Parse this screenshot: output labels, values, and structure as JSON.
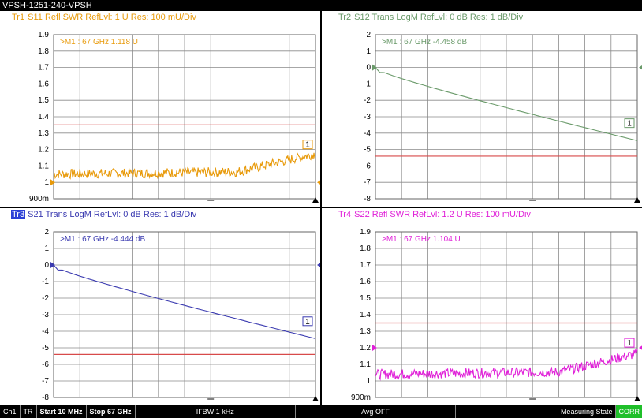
{
  "title": "VPSH-1251-240-VPSH",
  "traces": [
    {
      "id": "tr1",
      "tag": "Tr1",
      "header": "S11 Refl SWR RefLvl: 1  U Res: 100 mU/Div",
      "color": "#e89a0a",
      "marker": ">M1 :  67 GHz  1.118  U",
      "marker_index": "1",
      "yticks": [
        "1.9",
        "1.8",
        "1.7",
        "1.6",
        "1.5",
        "1.4",
        "1.3",
        "1.2",
        "1.1",
        "1",
        "900m"
      ],
      "ymin": 0.9,
      "ymax": 1.9,
      "limit": 1.35,
      "active": false,
      "ref_arrow": true
    },
    {
      "id": "tr2",
      "tag": "Tr2",
      "header": "S12 Trans LogM RefLvl: 0  dB Res: 1  dB/Div",
      "color": "#6a9a6a",
      "marker": ">M1 :  67 GHz  -4.458  dB",
      "marker_index": "1",
      "yticks": [
        "2",
        "1",
        "0",
        "-1",
        "-2",
        "-3",
        "-4",
        "-5",
        "-6",
        "-7",
        "-8"
      ],
      "ymin": -8,
      "ymax": 2,
      "limit": -5.4,
      "active": false,
      "ref_arrow": true
    },
    {
      "id": "tr3",
      "tag": "Tr3",
      "header": "S21 Trans LogM RefLvl: 0  dB Res: 1  dB/Div",
      "color": "#3a3ab0",
      "marker": ">M1 :  67 GHz  -4.444  dB",
      "marker_index": "1",
      "yticks": [
        "2",
        "1",
        "0",
        "-1",
        "-2",
        "-3",
        "-4",
        "-5",
        "-6",
        "-7",
        "-8"
      ],
      "ymin": -8,
      "ymax": 2,
      "limit": -5.4,
      "active": true,
      "ref_arrow": true
    },
    {
      "id": "tr4",
      "tag": "Tr4",
      "header": "S22 Refl SWR RefLvl: 1.2  U Res: 100 mU/Div",
      "color": "#e020d8",
      "marker": ">M1 :  67 GHz  1.104  U",
      "marker_index": "1",
      "yticks": [
        "1.9",
        "1.8",
        "1.7",
        "1.6",
        "1.5",
        "1.4",
        "1.3",
        "1.2",
        "1.1",
        "1",
        "900m"
      ],
      "ymin": 0.9,
      "ymax": 1.9,
      "limit": 1.35,
      "active": false,
      "ref_arrow": true
    }
  ],
  "status": {
    "channel": "Ch1",
    "mode": "TR",
    "start": "Start 10 MHz",
    "stop": "Stop 67 GHz",
    "ifbw": "IFBW 1 kHz",
    "avg": "Avg OFF",
    "state": "Measuring State",
    "corr": "CORR"
  },
  "colors": {
    "grid": "#8a8a8a",
    "limit": "#d84a4a",
    "background": "#ffffff"
  }
}
